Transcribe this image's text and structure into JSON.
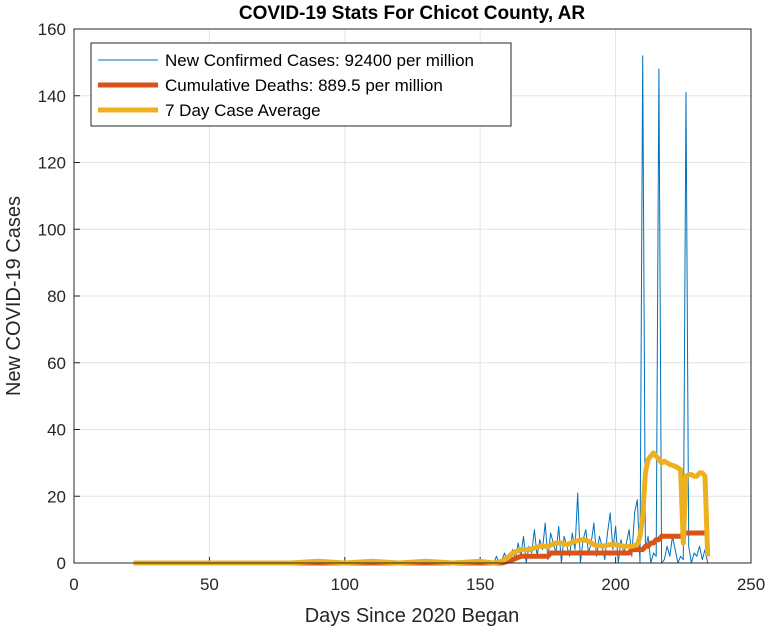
{
  "chart_data": {
    "type": "line",
    "title": "COVID-19 Stats For Chicot County, AR",
    "xlabel": "Days Since 2020 Began",
    "ylabel": "New COVID-19 Cases",
    "xlim": [
      0,
      250
    ],
    "ylim": [
      0,
      160
    ],
    "xticks": [
      "0",
      "50",
      "100",
      "150",
      "200",
      "250"
    ],
    "yticks": [
      "0",
      "20",
      "40",
      "60",
      "80",
      "100",
      "120",
      "140",
      "160"
    ],
    "grid": true,
    "legend_position": "top-left",
    "series": [
      {
        "name": "New Confirmed Cases: 92400 per million",
        "color": "#0072BD",
        "line_weight": "thin",
        "x": [
          22,
          60,
          100,
          120,
          140,
          150,
          155,
          156,
          157,
          158,
          159,
          160,
          161,
          162,
          163,
          164,
          165,
          166,
          167,
          168,
          169,
          170,
          171,
          172,
          173,
          174,
          175,
          176,
          177,
          178,
          179,
          180,
          181,
          182,
          183,
          184,
          185,
          186,
          187,
          188,
          189,
          190,
          191,
          192,
          193,
          194,
          195,
          196,
          197,
          198,
          199,
          200,
          201,
          202,
          203,
          204,
          205,
          206,
          207,
          208,
          209,
          210,
          211,
          212,
          213,
          214,
          215,
          216,
          217,
          218,
          219,
          220,
          221,
          222,
          223,
          224,
          225,
          226,
          227,
          228,
          229,
          230,
          231,
          232,
          233,
          234
        ],
        "values": [
          0,
          0,
          0,
          0,
          0,
          0,
          0,
          2,
          0,
          1,
          3,
          0,
          2,
          4,
          1,
          6,
          2,
          8,
          0,
          5,
          3,
          10,
          2,
          7,
          4,
          12,
          1,
          9,
          6,
          3,
          11,
          0,
          8,
          5,
          2,
          9,
          4,
          21,
          0,
          7,
          10,
          3,
          6,
          12,
          2,
          8,
          5,
          1,
          9,
          15,
          4,
          11,
          0,
          7,
          3,
          6,
          10,
          2,
          15,
          19,
          0,
          152,
          4,
          8,
          0,
          3,
          2,
          148,
          0,
          1,
          5,
          2,
          8,
          4,
          0,
          2,
          1,
          141,
          5,
          0,
          3,
          2,
          5,
          1,
          4,
          0
        ]
      },
      {
        "name": "Cumulative Deaths: 889.5 per million",
        "color": "#D95319",
        "line_weight": "thick",
        "x": [
          22,
          100,
          158,
          162,
          165,
          175,
          176,
          200,
          201,
          205,
          206,
          210,
          211,
          212,
          213,
          214,
          215,
          216,
          217,
          218,
          219,
          220,
          224,
          225,
          226,
          227,
          228,
          229,
          232,
          233
        ],
        "values": [
          0,
          0,
          0,
          1,
          2,
          2,
          3,
          3,
          3,
          3,
          4,
          4,
          5,
          5,
          6,
          6,
          7,
          7,
          8,
          8,
          8,
          8,
          8,
          9,
          9,
          9,
          9,
          9,
          9,
          9
        ]
      },
      {
        "name": "7 Day Case Average",
        "color": "#EDB120",
        "line_weight": "thick",
        "x": [
          22,
          80,
          90,
          100,
          110,
          120,
          130,
          140,
          150,
          155,
          158,
          160,
          162,
          165,
          168,
          170,
          172,
          175,
          178,
          180,
          182,
          185,
          188,
          190,
          192,
          195,
          198,
          200,
          203,
          206,
          208,
          209,
          210,
          211,
          212,
          213,
          214,
          215,
          216,
          217,
          218,
          219,
          220,
          222,
          223,
          224,
          225,
          226,
          227,
          228,
          229,
          230,
          231,
          232,
          233,
          234
        ],
        "values": [
          0,
          0,
          0.5,
          0,
          0.5,
          0,
          0.5,
          0,
          0.5,
          0,
          0.5,
          1.5,
          3,
          4,
          4,
          4.5,
          5,
          5,
          6,
          6,
          5.5,
          6.5,
          7,
          6.5,
          5.5,
          5,
          5.5,
          5.5,
          5,
          5,
          5.5,
          8,
          14,
          27,
          31,
          32,
          33,
          32,
          31,
          30,
          30.5,
          30,
          29.5,
          29,
          28.5,
          28,
          6,
          26,
          26.5,
          26.5,
          26,
          26,
          27,
          27,
          26,
          2
        ]
      }
    ]
  }
}
